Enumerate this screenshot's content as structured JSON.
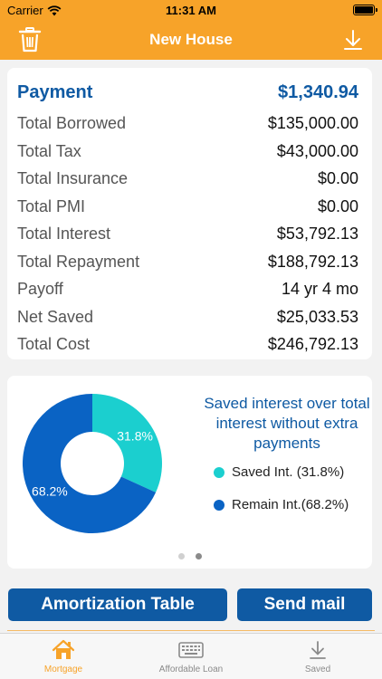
{
  "status_bar": {
    "carrier": "Carrier",
    "time": "11:31 AM"
  },
  "nav": {
    "title": "New House",
    "left_icon": "trash-icon",
    "right_icon": "download-icon"
  },
  "payment": {
    "label": "Payment",
    "value": "$1,340.94",
    "rows": [
      {
        "label": "Total Borrowed",
        "value": "$135,000.00"
      },
      {
        "label": "Total Tax",
        "value": "$43,000.00"
      },
      {
        "label": "Total Insurance",
        "value": "$0.00"
      },
      {
        "label": "Total PMI",
        "value": "$0.00"
      },
      {
        "label": "Total Interest",
        "value": "$53,792.13"
      },
      {
        "label": "Total Repayment",
        "value": "$188,792.13"
      },
      {
        "label": "Payoff",
        "value": "14 yr 4 mo"
      },
      {
        "label": "Net Saved",
        "value": "$25,033.53"
      },
      {
        "label": "Total Cost",
        "value": "$246,792.13"
      }
    ]
  },
  "chart_data": {
    "type": "pie",
    "title": "Saved interest over total interest without extra payments",
    "categories": [
      "Saved Int.",
      "Remain Int."
    ],
    "values": [
      31.8,
      68.2
    ],
    "slice_labels": [
      "31.8%",
      "68.2%"
    ],
    "colors": [
      "#1bcfcf",
      "#0a63c4"
    ],
    "legend": [
      "Saved Int. (31.8%)",
      "Remain Int.(68.2%)"
    ],
    "legend_position": "right"
  },
  "pager": {
    "pages": 2,
    "active": 2
  },
  "buttons": {
    "amortization": "Amortization Table",
    "send_mail": "Send mail"
  },
  "tabs": [
    {
      "label": "Mortgage",
      "icon": "house-icon",
      "active": true
    },
    {
      "label": "Affordable Loan",
      "icon": "keyboard-icon",
      "active": false
    },
    {
      "label": "Saved",
      "icon": "download-icon",
      "active": false
    }
  ],
  "colors": {
    "accent": "#f7a329",
    "brand_blue": "#0f5aa3",
    "saved": "#1bcfcf",
    "remain": "#0a63c4"
  }
}
